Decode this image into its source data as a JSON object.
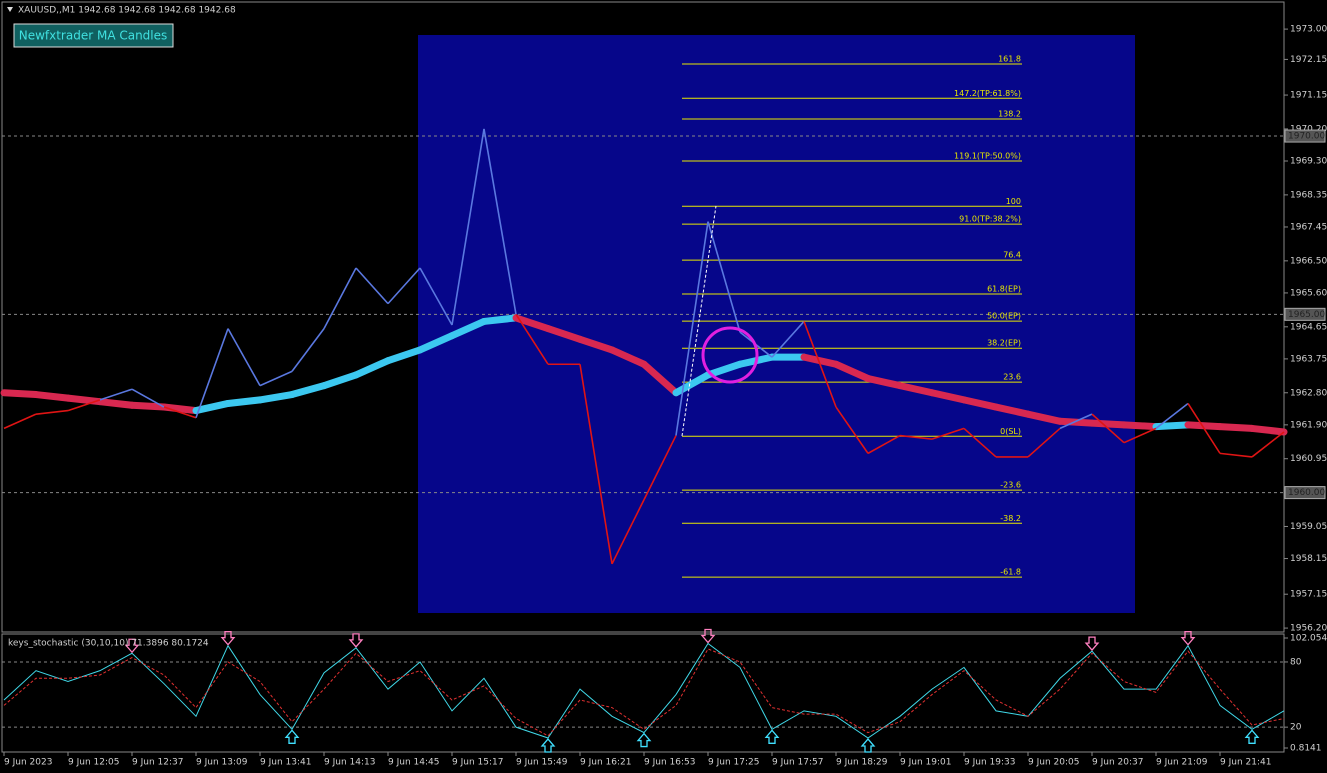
{
  "chart_data": [
    {
      "type": "line",
      "title": "XAUUSD,,M1  1942.68 1942.68 1942.68 1942.68",
      "annotation": "Newfxtrader MA Candles",
      "categories": [
        "9 Jun 2023",
        null,
        "9 Jun 12:05",
        null,
        "9 Jun 12:37",
        null,
        "9 Jun 13:09",
        null,
        "9 Jun 13:41",
        null,
        "9 Jun 14:13",
        null,
        "9 Jun 14:45",
        null,
        "9 Jun 15:17",
        null,
        "9 Jun 15:49",
        null,
        "9 Jun 16:21",
        null,
        "9 Jun 16:53",
        null,
        "9 Jun 17:25",
        null,
        "9 Jun 17:57",
        null,
        "9 Jun 18:29",
        null,
        "9 Jun 19:01",
        null,
        "9 Jun 19:33",
        null,
        "9 Jun 20:05",
        null,
        "9 Jun 20:37",
        null,
        "9 Jun 21:09",
        null,
        "9 Jun 21:41",
        null,
        null
      ],
      "series": [
        {
          "up_color": "#5a78e0",
          "down_color": "#e01414",
          "values": [
            1961.8,
            1962.2,
            1962.3,
            1962.6,
            1962.9,
            1962.4,
            1962.1,
            1964.6,
            1963.0,
            1963.4,
            1964.6,
            1966.3,
            1965.3,
            1966.3,
            1964.7,
            1970.2,
            1965.0,
            1963.6,
            1963.6,
            1958.0,
            1959.8,
            1961.6,
            1967.6,
            1964.5,
            1963.8,
            1964.8,
            1962.4,
            1961.1,
            1961.6,
            1961.5,
            1961.8,
            1961.0,
            1961.0,
            1961.8,
            1962.2,
            1961.4,
            1961.8,
            1962.5,
            1961.1,
            1961.0,
            1961.7
          ]
        },
        {
          "up_color": "#3cc8f0",
          "down_color": "#d82850",
          "values": [
            1962.8,
            1962.75,
            1962.65,
            1962.55,
            1962.45,
            1962.4,
            1962.3,
            1962.5,
            1962.6,
            1962.75,
            1963.0,
            1963.3,
            1963.7,
            1964.0,
            1964.4,
            1964.8,
            1964.9,
            1964.6,
            1964.3,
            1964.0,
            1963.6,
            1962.8,
            1963.3,
            1963.6,
            1963.8,
            1963.8,
            1963.6,
            1963.2,
            1963.0,
            1962.8,
            1962.6,
            1962.4,
            1962.2,
            1962.0,
            1961.95,
            1961.9,
            1961.85,
            1961.9,
            1961.85,
            1961.8,
            1961.7
          ]
        }
      ],
      "ylim": [
        1956.09,
        1973.76
      ],
      "yticks": [
        {
          "value": 1973,
          "label": "1973.00"
        },
        1972.15,
        1971.15,
        {
          "value": 1970.2,
          "label": "1970.20"
        },
        {
          "value": 1969.3,
          "label": "1969.30"
        },
        1968.35,
        1967.45,
        {
          "value": 1966.5,
          "label": "1966.50"
        },
        {
          "value": 1965.6,
          "label": "1965.60"
        },
        1964.65,
        1963.75,
        {
          "value": 1962.8,
          "label": "1962.80"
        },
        {
          "value": 1961.9,
          "label": "1961.90"
        },
        1960.95,
        1959.05,
        1958.15,
        1957.15,
        {
          "value": 1956.2,
          "label": "1956.20"
        }
      ],
      "hlines": [
        {
          "value": 1970,
          "label": "1970.00"
        },
        {
          "value": 1965,
          "label": "1965.00"
        },
        {
          "value": 1960,
          "label": "1960.00"
        }
      ],
      "fib": {
        "color": "#e8e800",
        "levels": [
          {
            "label": "161.8",
            "price": 1972.02
          },
          {
            "label": "147.2(TP:61.8%)",
            "price": 1971.06
          },
          {
            "label": "138.2",
            "price": 1970.48
          },
          {
            "label": "119.1(TP:50.0%)",
            "price": 1969.3
          },
          {
            "label": "100",
            "price": 1968.03
          },
          {
            "label": "91.0(TP:38.2%)",
            "price": 1967.53
          },
          {
            "label": "76.4",
            "price": 1966.52
          },
          {
            "label": "61.8(EP)",
            "price": 1965.57
          },
          {
            "label": "50.0(EP)",
            "price": 1964.81
          },
          {
            "label": "38.2(EP)",
            "price": 1964.05
          },
          {
            "label": "23.6",
            "price": 1963.1
          },
          {
            "label": "0(SL)",
            "price": 1961.58
          },
          {
            "label": "-23.6",
            "price": 1960.07
          },
          {
            "label": "-38.2",
            "price": 1959.14
          },
          {
            "label": "-61.8",
            "price": 1957.63
          }
        ]
      }
    },
    {
      "type": "line",
      "title": "keys_stochastic (30,10,10) 71.3896 80.1724",
      "series": [
        {
          "color": "#40d8e8",
          "values": [
            45,
            72,
            62,
            72,
            88,
            60,
            30,
            95,
            50,
            18,
            70,
            93,
            55,
            80,
            35,
            65,
            20,
            10,
            55,
            30,
            15,
            50,
            97,
            75,
            18,
            35,
            30,
            10,
            30,
            55,
            75,
            35,
            30,
            65,
            90,
            55,
            55,
            95,
            40,
            18,
            35
          ]
        },
        {
          "color": "#e03030",
          "values": [
            40,
            65,
            65,
            68,
            84,
            68,
            38,
            80,
            62,
            25,
            55,
            88,
            62,
            72,
            45,
            58,
            28,
            12,
            45,
            38,
            18,
            40,
            92,
            80,
            38,
            32,
            32,
            15,
            25,
            50,
            72,
            45,
            30,
            55,
            88,
            62,
            52,
            90,
            55,
            22,
            28
          ]
        }
      ],
      "ylim": [
        0.8141,
        102.0549
      ],
      "yticks": [
        102.0549,
        80,
        20,
        0.8141
      ],
      "levels": [
        80,
        20
      ],
      "sell_color": "#ff80c0",
      "buy_color": "#40e0ff"
    }
  ]
}
